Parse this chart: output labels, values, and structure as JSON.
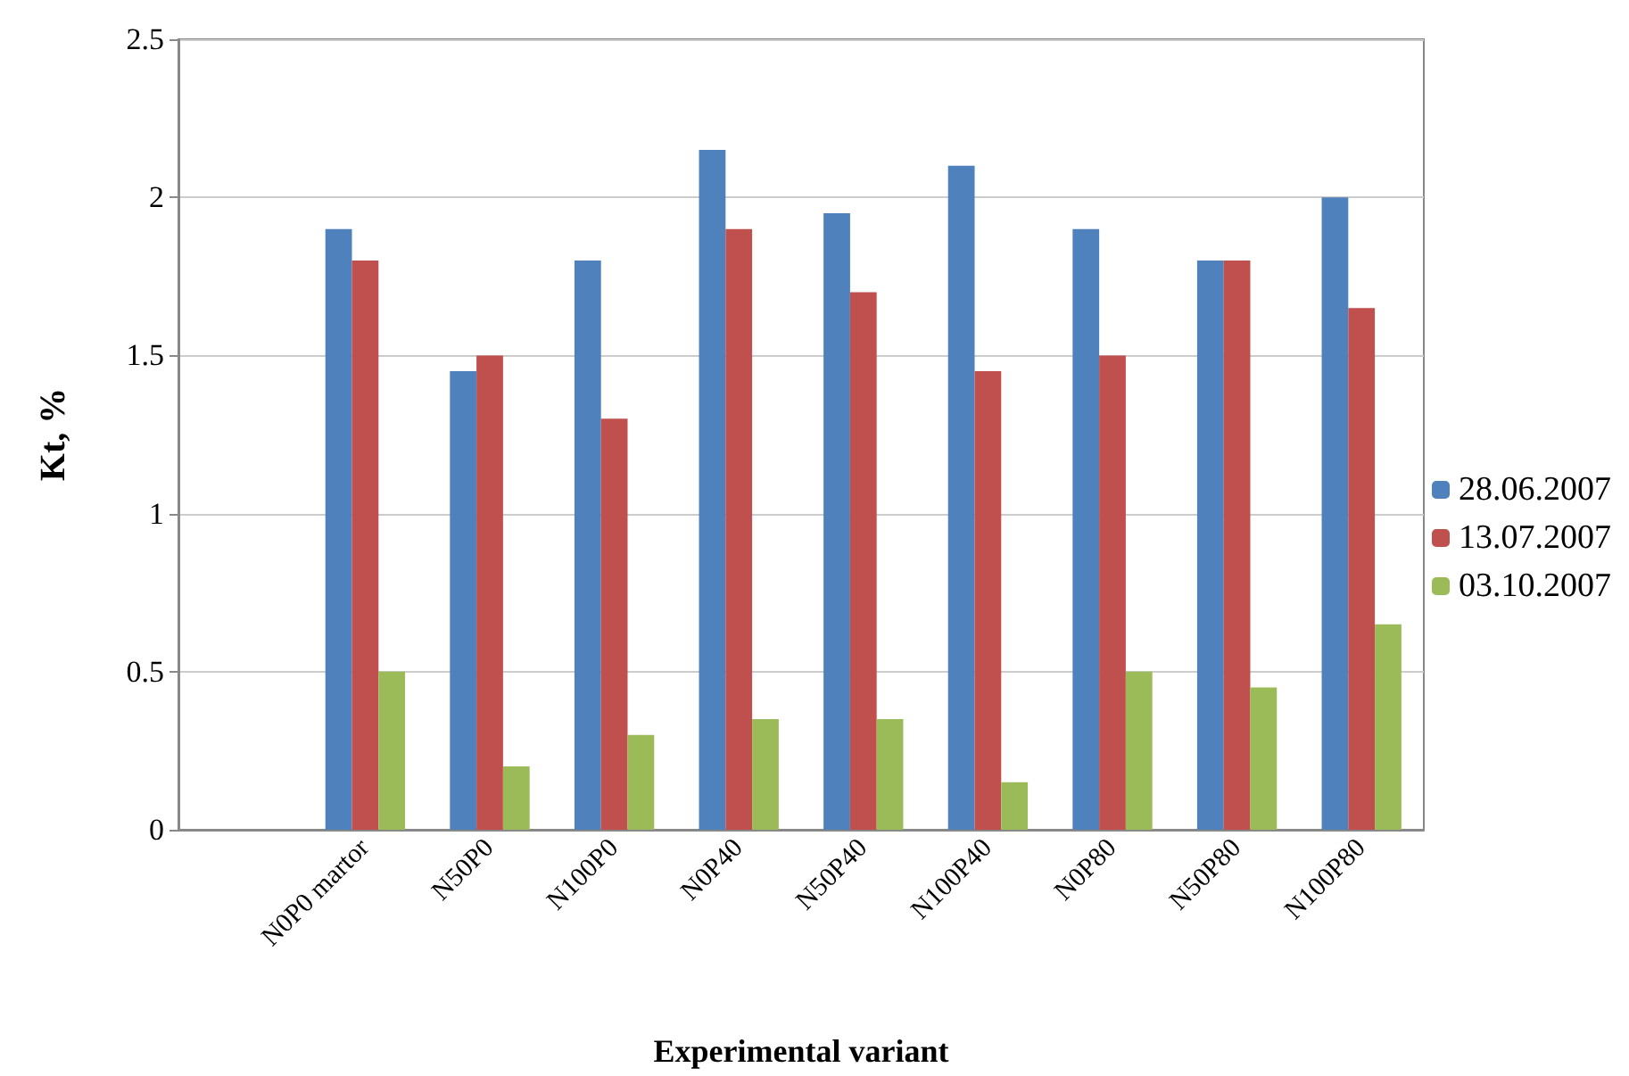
{
  "chart_data": {
    "type": "bar",
    "xlabel": "Experimental variant",
    "ylabel": "Kt, %",
    "categories": [
      null,
      "N0P0 martor",
      "N50P0",
      "N100P0",
      "N0P40",
      "N50P40",
      "N100P40",
      "N0P80",
      "N50P80",
      "N100P80"
    ],
    "series": [
      {
        "name": "28.06.2007",
        "color": "#4f81bd",
        "values": [
          null,
          1.9,
          1.45,
          1.8,
          2.15,
          1.95,
          2.1,
          1.9,
          1.8,
          2.0
        ]
      },
      {
        "name": "13.07.2007",
        "color": "#c0504d",
        "values": [
          null,
          1.8,
          1.5,
          1.3,
          1.9,
          1.7,
          1.45,
          1.5,
          1.8,
          1.65
        ]
      },
      {
        "name": "03.10.2007",
        "color": "#9bbb59",
        "values": [
          null,
          0.5,
          0.2,
          0.3,
          0.35,
          0.35,
          0.15,
          0.5,
          0.45,
          0.65
        ]
      }
    ],
    "ylim": [
      0,
      2.5
    ],
    "yticks": [
      0,
      0.5,
      1,
      1.5,
      2,
      2.5
    ],
    "grid": "y",
    "legend": "right"
  }
}
